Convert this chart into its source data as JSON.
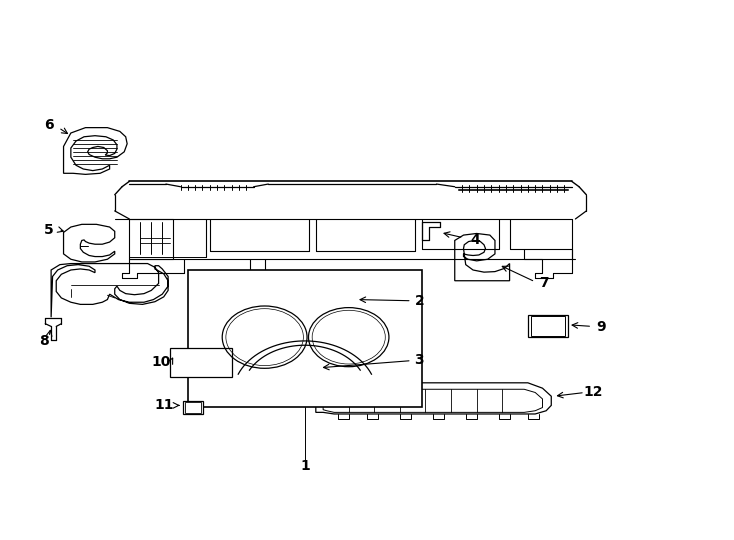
{
  "title": "",
  "background_color": "#ffffff",
  "line_color": "#000000",
  "label_color": "#000000",
  "fig_width": 7.34,
  "fig_height": 5.4,
  "dpi": 100,
  "fontsize_labels": 10,
  "fontweight": "bold"
}
